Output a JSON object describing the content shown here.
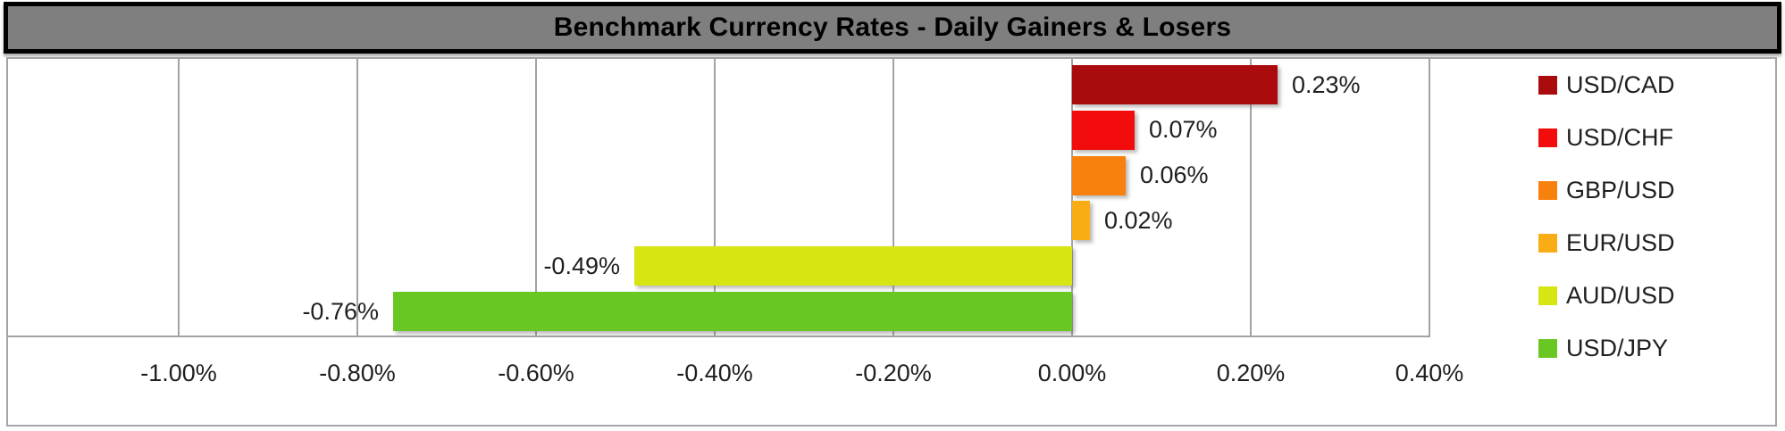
{
  "title": "Benchmark Currency Rates - Daily Gainers & Losers",
  "colors": {
    "title_bg": "#7F7F7F",
    "title_text": "#000000",
    "title_border": "#000000",
    "chart_border": "#A6A6A6",
    "gridline": "#A3A3A3",
    "label_text": "#1F1F1F",
    "background": "#FFFFFF"
  },
  "chart_data": {
    "type": "bar",
    "orientation": "horizontal",
    "title": "Benchmark Currency Rates - Daily Gainers & Losers",
    "categories": [
      "USD/CAD",
      "USD/CHF",
      "GBP/USD",
      "EUR/USD",
      "AUD/USD",
      "USD/JPY"
    ],
    "values": [
      0.23,
      0.07,
      0.06,
      0.02,
      -0.49,
      -0.76
    ],
    "value_labels": [
      "0.23%",
      "0.07%",
      "0.06%",
      "0.02%",
      "-0.49%",
      "-0.76%"
    ],
    "bar_colors": [
      "#AA0B0D",
      "#F20C0C",
      "#F8810D",
      "#F9AD15",
      "#D7E513",
      "#68C722"
    ],
    "x_axis": {
      "unit": "%",
      "min": -1.19,
      "max": 0.4,
      "tick_labels": [
        "-1.00%",
        "-0.80%",
        "-0.60%",
        "-0.40%",
        "-0.20%",
        "0.00%",
        "0.20%",
        "0.40%"
      ],
      "tick_values": [
        -1.0,
        -0.8,
        -0.6,
        -0.4,
        -0.2,
        0.0,
        0.2,
        0.4
      ]
    },
    "grid": true,
    "legend_position": "right",
    "legend": [
      {
        "label": "USD/CAD",
        "color": "#AA0B0D"
      },
      {
        "label": "USD/CHF",
        "color": "#F20C0C"
      },
      {
        "label": "GBP/USD",
        "color": "#F8810D"
      },
      {
        "label": "EUR/USD",
        "color": "#F9AD15"
      },
      {
        "label": "AUD/USD",
        "color": "#D7E513"
      },
      {
        "label": "USD/JPY",
        "color": "#68C722"
      }
    ]
  }
}
